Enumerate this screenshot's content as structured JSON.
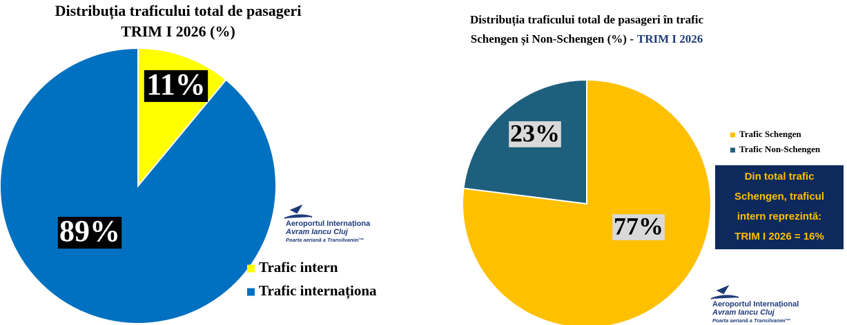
{
  "chart_data": [
    {
      "type": "pie",
      "title": [
        "Distribuția traficului total de pasageri",
        "TRIM I 2026 (%)"
      ],
      "categories": [
        "Trafic intern",
        "Trafic internaționa"
      ],
      "values": [
        11,
        89
      ],
      "value_labels": [
        "11%",
        "89%"
      ],
      "colors": [
        "#ffff00",
        "#0070c0"
      ],
      "logo": [
        "Aeroportul Internaționa",
        "Avram Iancu Cluj",
        "Poarta aeriană a Transilvaniei™"
      ]
    },
    {
      "type": "pie",
      "title": [
        "Distribuția traficului total de pasageri în trafic",
        "Schengen și Non-Schengen (%) -"
      ],
      "title_suffix": "TRIM I 2026",
      "categories": [
        "Trafic Schengen",
        "Trafic Non-Schengen"
      ],
      "values": [
        77,
        23
      ],
      "value_labels": [
        "77%",
        "23%"
      ],
      "colors": [
        "#ffc000",
        "#1f5f7e"
      ],
      "annotation": [
        "Din total trafic",
        "Schengen, traficul",
        "intern reprezintă:",
        "TRIM I 2026 = 16%"
      ],
      "logo": [
        "Aeroportul Internațional",
        "Avram Iancu Cluj",
        "Poarta aeriană a Transilvaniei™"
      ]
    }
  ]
}
